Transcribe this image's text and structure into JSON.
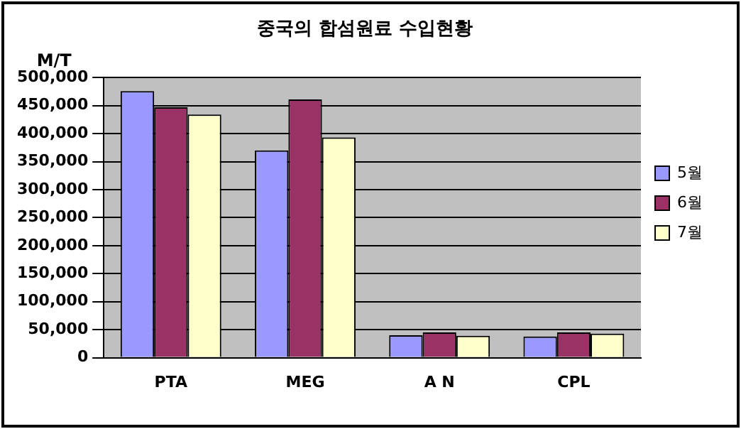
{
  "chart_data": {
    "type": "bar",
    "title": "중국의 합섬원료 수입현황",
    "ylabel": "M/T",
    "categories": [
      "PTA",
      "MEG",
      "A N",
      "CPL"
    ],
    "series": [
      {
        "name": "5월",
        "color": "#9999ff",
        "values": [
          476000,
          370000,
          40000,
          38000
        ]
      },
      {
        "name": "6월",
        "color": "#993366",
        "values": [
          447000,
          461000,
          45000,
          45000
        ]
      },
      {
        "name": "7월",
        "color": "#ffffcc",
        "values": [
          434000,
          393000,
          39000,
          43000
        ]
      }
    ],
    "ylim": [
      0,
      500000
    ],
    "yticks": [
      {
        "value": 0,
        "label": "0"
      },
      {
        "value": 50000,
        "label": "50,000"
      },
      {
        "value": 100000,
        "label": "100,000"
      },
      {
        "value": 150000,
        "label": "150,000"
      },
      {
        "value": 200000,
        "label": "200,000"
      },
      {
        "value": 250000,
        "label": "250,000"
      },
      {
        "value": 300000,
        "label": "300,000"
      },
      {
        "value": 350000,
        "label": "350,000"
      },
      {
        "value": 400000,
        "label": "400,000"
      },
      {
        "value": 450000,
        "label": "450,000"
      },
      {
        "value": 500000,
        "label": "500,000"
      }
    ],
    "grid": "y",
    "legend": "right"
  }
}
